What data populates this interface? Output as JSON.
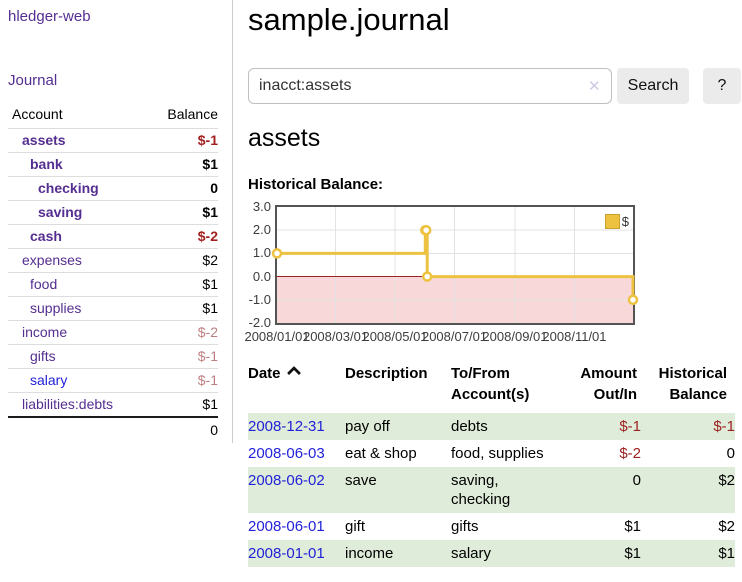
{
  "app": {
    "brand": "hledger-web"
  },
  "sidebar": {
    "nav": {
      "journal_label": "Journal"
    },
    "accounts": {
      "headers": {
        "account": "Account",
        "balance": "Balance"
      },
      "rows": [
        {
          "name": "assets",
          "balance": "$-1",
          "row": "lvl1 b",
          "bal": "neg b"
        },
        {
          "name": "bank",
          "balance": "$1",
          "row": "lvl2 b",
          "bal": "b"
        },
        {
          "name": "checking",
          "balance": "0",
          "row": "lvl3 b",
          "bal": "b"
        },
        {
          "name": "saving",
          "balance": "$1",
          "row": "lvl3 b",
          "bal": "b"
        },
        {
          "name": "cash",
          "balance": "$-2",
          "row": "lvl2 b",
          "bal": "neg b"
        },
        {
          "name": "expenses",
          "balance": "$2",
          "row": "lvl1",
          "bal": ""
        },
        {
          "name": "food",
          "balance": "$1",
          "row": "lvl2",
          "bal": ""
        },
        {
          "name": "supplies",
          "balance": "$1",
          "row": "lvl2",
          "bal": ""
        },
        {
          "name": "income",
          "balance": "$-2",
          "row": "lvl1",
          "bal": "neg-soft"
        },
        {
          "name": "gifts",
          "balance": "$-1",
          "row": "lvl2",
          "bal": "neg-soft"
        },
        {
          "name": "salary",
          "balance": "$-1",
          "row": "lvl2 blue",
          "bal": "neg-soft"
        },
        {
          "name": "liabilities:debts",
          "balance": "$1",
          "row": "lvl1",
          "bal": ""
        }
      ],
      "total": "0"
    }
  },
  "main": {
    "title": "sample.journal",
    "search": {
      "value": "inacct:assets",
      "clear_icon": "✕",
      "search_label": "Search",
      "help_label": "?"
    },
    "section_title": "assets"
  },
  "chart_data": {
    "type": "line",
    "title": "Historical Balance:",
    "step": true,
    "series": [
      {
        "name": "$",
        "color": "#edc240",
        "points": [
          {
            "date": "2008-01-01",
            "value": 1
          },
          {
            "date": "2008-06-01",
            "value": 2
          },
          {
            "date": "2008-06-02",
            "value": 2
          },
          {
            "date": "2008-06-03",
            "value": 0
          },
          {
            "date": "2008-12-31",
            "value": -1
          }
        ]
      }
    ],
    "xlim": [
      "2008-01-01",
      "2008-12-31"
    ],
    "ylim": [
      -2,
      3
    ],
    "x_ticks": [
      {
        "date": "2008-01-01",
        "label": "2008/01/01"
      },
      {
        "date": "2008-03-01",
        "label": "2008/03/01"
      },
      {
        "date": "2008-05-01",
        "label": "2008/05/01"
      },
      {
        "date": "2008-07-01",
        "label": "2008/07/01"
      },
      {
        "date": "2008-09-01",
        "label": "2008/09/01"
      },
      {
        "date": "2008-11-01",
        "label": "2008/11/01"
      }
    ],
    "y_ticks": [
      {
        "value": 3,
        "label": "3.0"
      },
      {
        "value": 2,
        "label": "2.0"
      },
      {
        "value": 1,
        "label": "1.0"
      },
      {
        "value": 0,
        "label": "0.0"
      },
      {
        "value": -1,
        "label": "-1.0"
      },
      {
        "value": -2,
        "label": "-2.0"
      }
    ],
    "legend": {
      "label": "$",
      "position": "top-right"
    },
    "grid": true,
    "gridline_color": "#e3e3e3",
    "negative_region_color": "#f8d8d8",
    "zero_line_color": "#992222",
    "border_color": "#545454"
  },
  "register": {
    "headers": {
      "date": "Date",
      "description": "Description",
      "accounts": "To/From\nAccount(s)",
      "amount": "Amount\nOut/In",
      "balance": "Historical\nBalance"
    },
    "rows": [
      {
        "date": "2008-12-31",
        "description": "pay off",
        "accounts": "debts",
        "amount": "$-1",
        "amount_cls": "neg",
        "balance": "$-1",
        "balance_cls": "neg",
        "row_cls": "green"
      },
      {
        "date": "2008-06-03",
        "description": "eat & shop",
        "accounts": "food, supplies",
        "amount": "$-2",
        "amount_cls": "neg",
        "balance": "0",
        "balance_cls": "",
        "row_cls": ""
      },
      {
        "date": "2008-06-02",
        "description": "save",
        "accounts": "saving,\nchecking",
        "amount": "0",
        "amount_cls": "",
        "balance": "$2",
        "balance_cls": "",
        "row_cls": "green"
      },
      {
        "date": "2008-06-01",
        "description": "gift",
        "accounts": "gifts",
        "amount": "$1",
        "amount_cls": "",
        "balance": "$2",
        "balance_cls": "",
        "row_cls": ""
      },
      {
        "date": "2008-01-01",
        "description": "income",
        "accounts": "salary",
        "amount": "$1",
        "amount_cls": "",
        "balance": "$1",
        "balance_cls": "",
        "row_cls": "green"
      }
    ]
  }
}
